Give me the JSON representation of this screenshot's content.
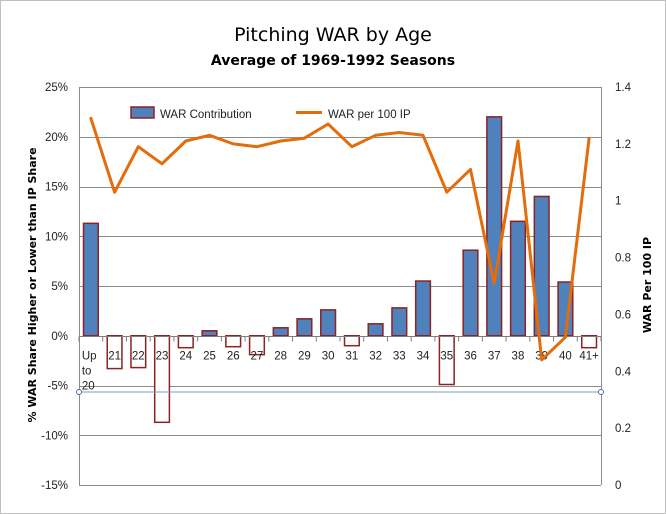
{
  "chart_data": {
    "type": "bar",
    "title": "Pitching WAR by Age",
    "subtitle": "Average of 1969-1992 Seasons",
    "categories": [
      "Up to 20",
      "21",
      "22",
      "23",
      "24",
      "25",
      "26",
      "27",
      "28",
      "29",
      "30",
      "31",
      "32",
      "33",
      "34",
      "35",
      "36",
      "37",
      "38",
      "39",
      "40",
      "41+"
    ],
    "ylabel_left": "% WAR Share Higher or Lower than IP Share",
    "ylabel_right": "WAR Per 100 IP",
    "ylim_left": [
      -15,
      25
    ],
    "ylim_right": [
      0,
      1.4
    ],
    "yticks_left": [
      "25%",
      "20%",
      "15%",
      "10%",
      "5%",
      "0%",
      "-5%",
      "-10%",
      "-15%"
    ],
    "yticks_right": [
      "1.4",
      "1.2",
      "1",
      "0.8",
      "0.6",
      "0.4",
      "0.2",
      "0"
    ],
    "grid": true,
    "legend": "top-left",
    "series": [
      {
        "name": "WAR Contribution",
        "kind": "bar",
        "axis": "left",
        "color_pos": "#4f81bd",
        "color_edge": "#8b2323",
        "values": [
          11.3,
          -3.3,
          -3.2,
          -8.7,
          -1.2,
          0.5,
          -1.1,
          -1.9,
          0.8,
          1.7,
          2.6,
          -1.0,
          1.2,
          2.8,
          5.5,
          -4.9,
          8.6,
          22.0,
          11.5,
          14.0,
          5.4,
          -1.2
        ]
      },
      {
        "name": "WAR per 100 IP",
        "kind": "line",
        "axis": "right",
        "color": "#e46c0a",
        "values": [
          1.29,
          1.03,
          1.19,
          1.13,
          1.21,
          1.23,
          1.2,
          1.19,
          1.21,
          1.22,
          1.27,
          1.19,
          1.23,
          1.24,
          1.23,
          1.03,
          1.11,
          0.71,
          1.21,
          0.44,
          0.52,
          1.22
        ]
      }
    ]
  }
}
